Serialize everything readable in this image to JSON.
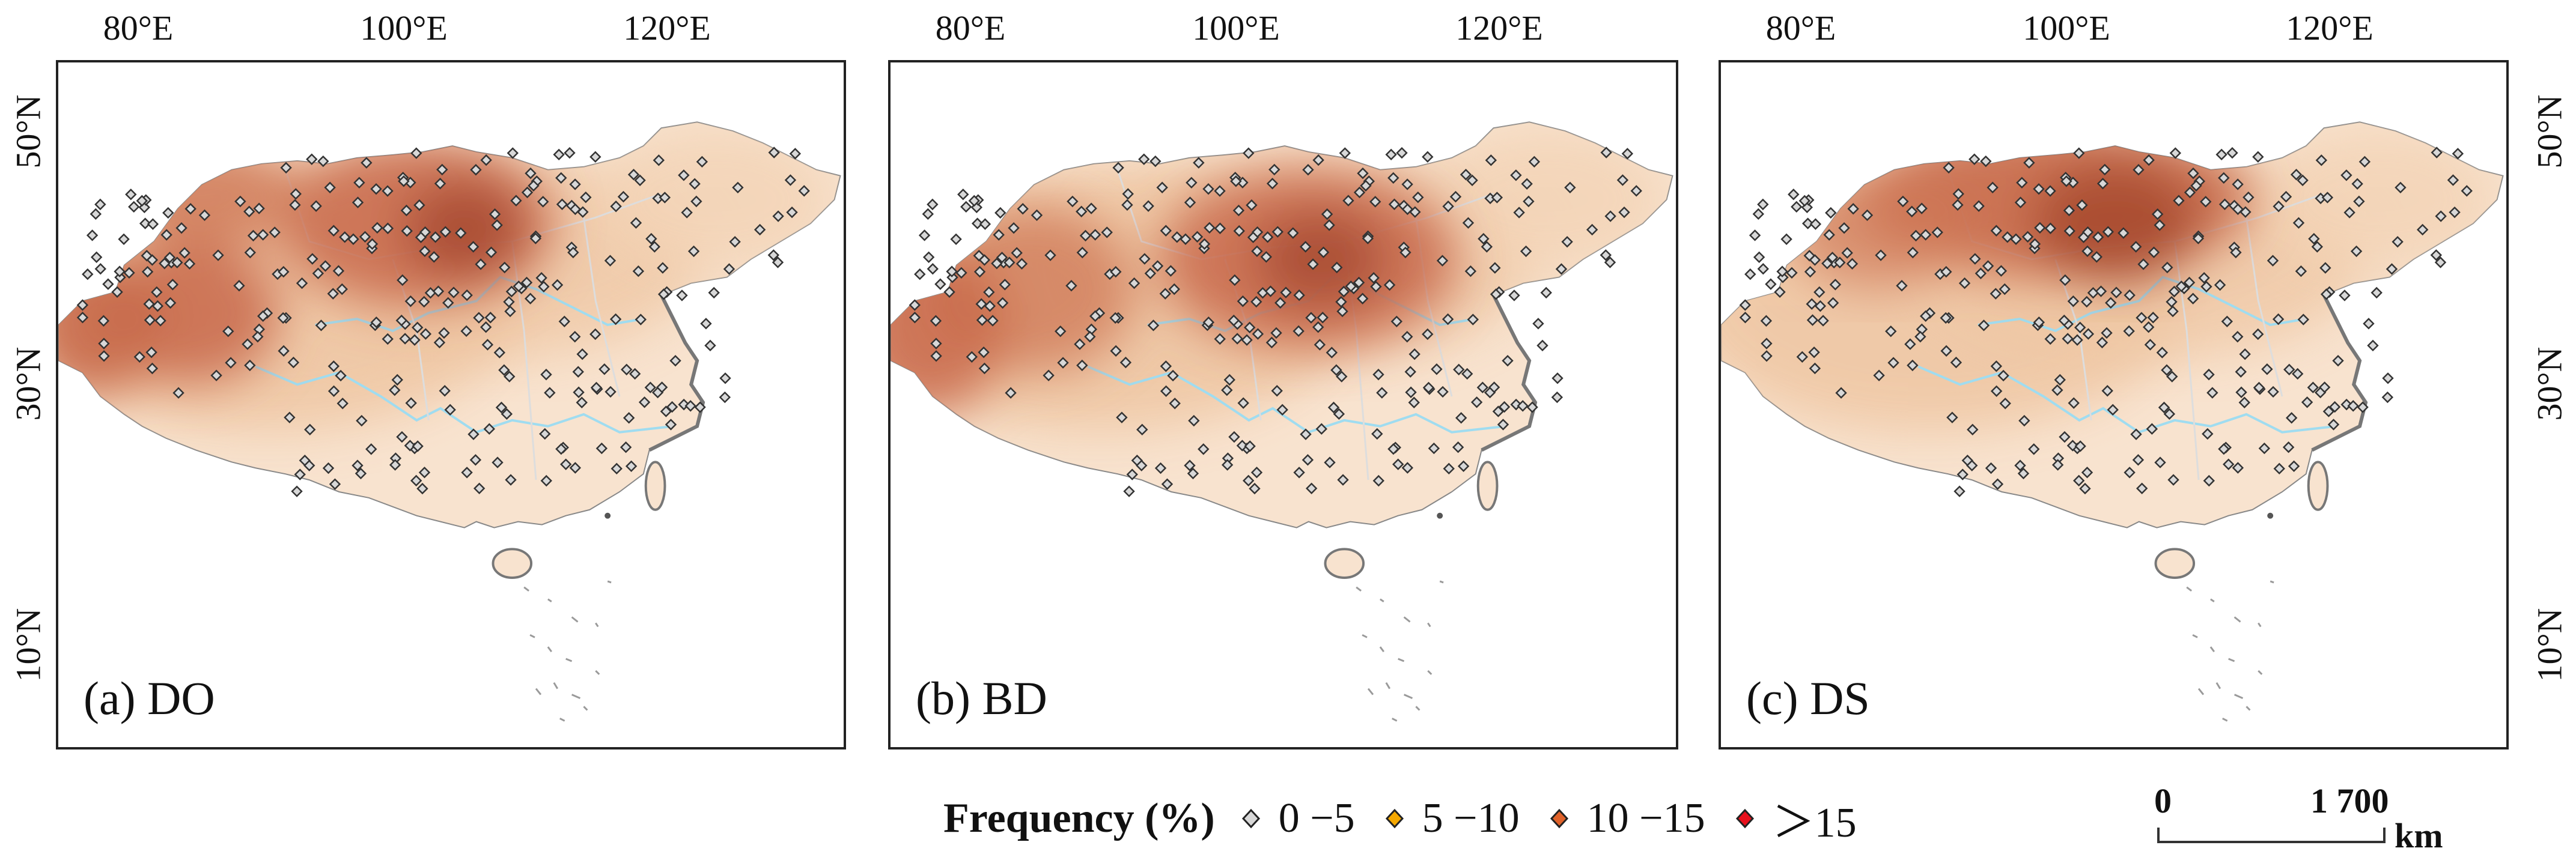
{
  "axes": {
    "lon_labels": [
      "80°E",
      "100°E",
      "120°E"
    ],
    "lat_labels": [
      "50°N",
      "30°N",
      "10°N"
    ]
  },
  "panels": [
    {
      "label": "(a) DO",
      "hotspot": "north-central and far-west"
    },
    {
      "label": "(b) BD",
      "hotspot": "central"
    },
    {
      "label": "(c) DS",
      "hotspot": "north-central"
    }
  ],
  "legend": {
    "title": "Frequency (%)",
    "items": [
      {
        "label": "0 −5",
        "color": "#d8d8d8"
      },
      {
        "label": "5 −10",
        "color": "#f5a800"
      },
      {
        "label": "10 −15",
        "color": "#e0622a"
      },
      {
        "label": "＞15",
        "color": "#e8101c"
      }
    ]
  },
  "scalebar": {
    "start": "0",
    "end": "1 700",
    "unit": "km"
  },
  "colors": {
    "base": "#f8e3cf",
    "light": "#efc7a4",
    "mid": "#e09a72",
    "dark": "#c8694a",
    "darkest": "#a84a32",
    "river": "#9fdcf0",
    "sea_islands": "#9a9a9a"
  }
}
